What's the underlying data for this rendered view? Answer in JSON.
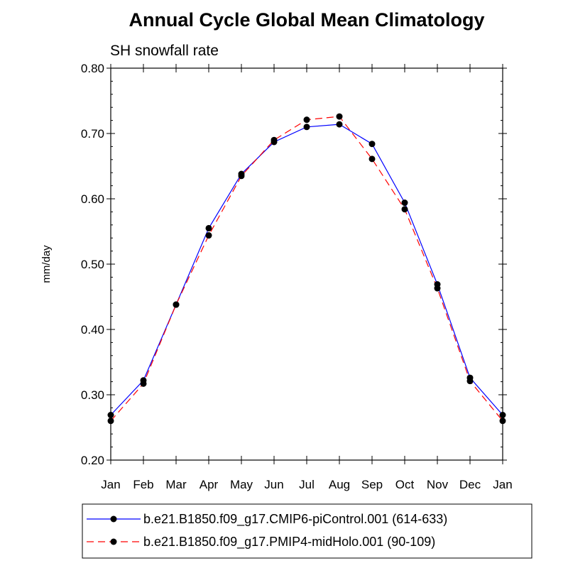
{
  "chart_data": {
    "type": "line",
    "title": "Annual Cycle Global Mean Climatology",
    "subtitle": "SH snowfall rate",
    "ylabel": "mm/day",
    "xlabel": "",
    "categories": [
      "Jan",
      "Feb",
      "Mar",
      "Apr",
      "May",
      "Jun",
      "Jul",
      "Aug",
      "Sep",
      "Oct",
      "Nov",
      "Dec",
      "Jan"
    ],
    "ylim": [
      0.2,
      0.8
    ],
    "yticks": [
      0.2,
      0.3,
      0.4,
      0.5,
      0.6,
      0.7,
      0.8
    ],
    "ytick_labels": [
      "0.20",
      "0.30",
      "0.40",
      "0.50",
      "0.60",
      "0.70",
      "0.80"
    ],
    "grid": false,
    "legend_position": "bottom",
    "series": [
      {
        "name": "b.e21.B1850.f09_g17.CMIP6-piControl.001 (614-633)",
        "color": "#0000ff",
        "dash": "solid",
        "values": [
          0.269,
          0.322,
          0.438,
          0.555,
          0.638,
          0.687,
          0.71,
          0.714,
          0.684,
          0.594,
          0.469,
          0.326,
          0.269
        ]
      },
      {
        "name": "b.e21.B1850.f09_g17.PMIP4-midHolo.001 (90-109)",
        "color": "#ff0000",
        "dash": "dashed",
        "values": [
          0.26,
          0.317,
          0.438,
          0.544,
          0.635,
          0.69,
          0.721,
          0.726,
          0.661,
          0.584,
          0.463,
          0.321,
          0.26
        ]
      }
    ]
  }
}
